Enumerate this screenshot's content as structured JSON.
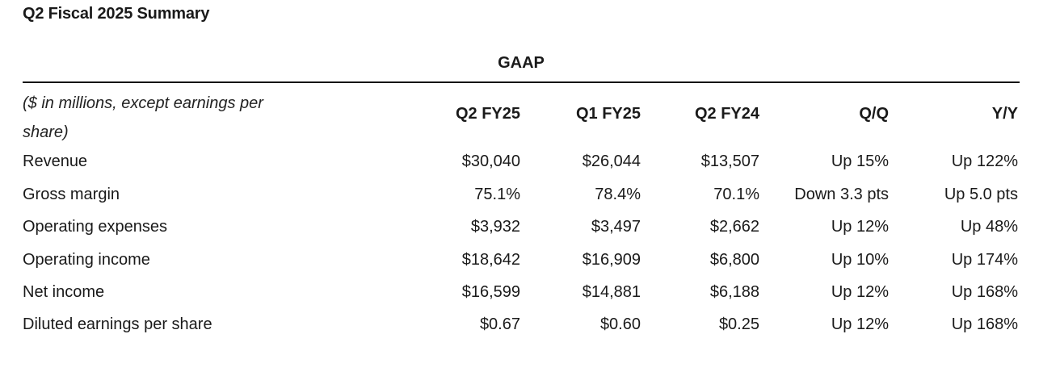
{
  "title": "Q2 Fiscal 2025 Summary",
  "group_label": "GAAP",
  "unit_note": "($ in millions, except earnings per share)",
  "columns": [
    "Q2 FY25",
    "Q1 FY25",
    "Q2 FY24",
    "Q/Q",
    "Y/Y"
  ],
  "rows": [
    {
      "label": "Revenue",
      "values": [
        "$30,040",
        "$26,044",
        "$13,507",
        "Up 15%",
        "Up 122%"
      ]
    },
    {
      "label": "Gross margin",
      "values": [
        "75.1%",
        "78.4%",
        "70.1%",
        "Down 3.3 pts",
        "Up 5.0 pts"
      ]
    },
    {
      "label": "Operating expenses",
      "values": [
        "$3,932",
        "$3,497",
        "$2,662",
        "Up 12%",
        "Up 48%"
      ]
    },
    {
      "label": "Operating income",
      "values": [
        "$18,642",
        "$16,909",
        "$6,800",
        "Up 10%",
        "Up 174%"
      ]
    },
    {
      "label": "Net income",
      "values": [
        "$16,599",
        "$14,881",
        "$6,188",
        "Up 12%",
        "Up 168%"
      ]
    },
    {
      "label": "Diluted earnings per share",
      "values": [
        "$0.67",
        "$0.60",
        "$0.25",
        "Up 12%",
        "Up 168%"
      ]
    }
  ]
}
